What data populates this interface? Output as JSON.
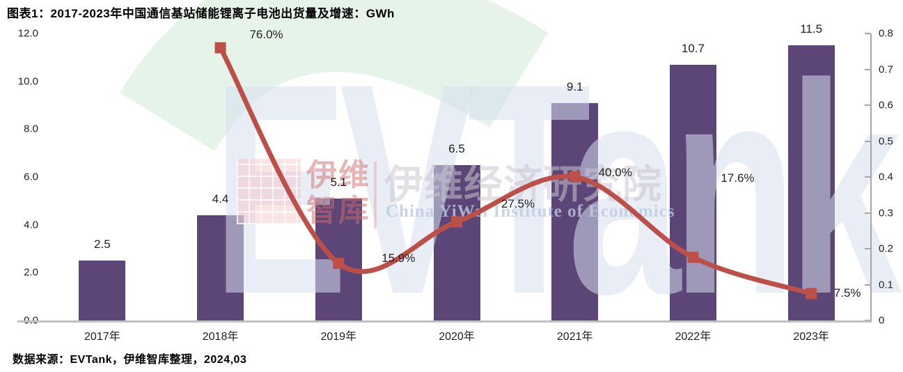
{
  "header": {
    "title": "图表1：2017-2023年中国通信基站储能锂离子电池出货量及增速：GWh"
  },
  "footer": {
    "source": "数据来源：EVTank，伊维智库整理，2024,03"
  },
  "watermark": {
    "brand_big": "EVTank",
    "brand_cn_top": "伊维",
    "brand_cn_bottom": "智库",
    "institute_cn": "伊维经济研究院",
    "institute_en": "China YiWei Institute of Economics"
  },
  "chart_data": {
    "type": "bar",
    "combo": "bar+line",
    "title": "图表1：2017-2023年中国通信基站储能锂离子电池出货量及增速：GWh",
    "categories": [
      "2017年",
      "2018年",
      "2019年",
      "2020年",
      "2021年",
      "2022年",
      "2023年"
    ],
    "series": [
      {
        "name": "出货量（GWh）",
        "type": "bar",
        "axis": "left",
        "values": [
          2.5,
          4.4,
          5.1,
          6.5,
          9.1,
          10.7,
          11.5
        ],
        "data_labels": [
          "2.5",
          "4.4",
          "5.1",
          "6.5",
          "9.1",
          "10.7",
          "11.5"
        ],
        "color": "#5c4677"
      },
      {
        "name": "增速",
        "type": "line",
        "axis": "right",
        "values": [
          null,
          0.76,
          0.159,
          0.275,
          0.4,
          0.176,
          0.075
        ],
        "data_labels": [
          "",
          "76.0%",
          "15.9%",
          "27.5%",
          "40.0%",
          "17.6%",
          "7.5%"
        ],
        "color": "#bc5049"
      }
    ],
    "left_axis": {
      "min": 0,
      "max": 12,
      "ticks": [
        "12.0",
        "10.0",
        "8.0",
        "6.0",
        "4.0",
        "2.0",
        "0.0"
      ]
    },
    "right_axis": {
      "min": 0,
      "max": 0.8,
      "ticks": [
        "0.8",
        "0.7",
        "0.6",
        "0.5",
        "0.4",
        "0.3",
        "0.2",
        "0.1",
        "0"
      ]
    },
    "grid": false,
    "legend_position": "none",
    "axis_line_color": "#bfbfbf",
    "right_axis_line_color": "#a6a6a6"
  }
}
